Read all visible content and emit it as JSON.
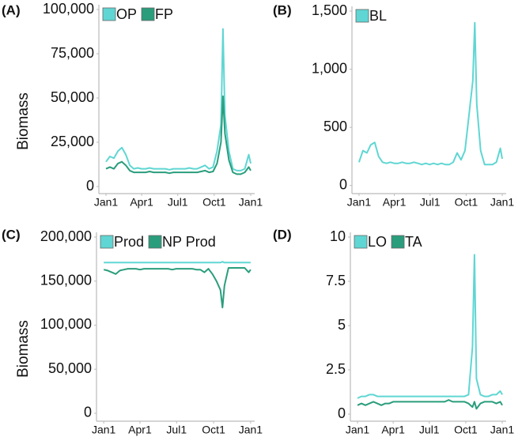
{
  "chart_data": [
    {
      "type": "line",
      "panel_label": "(A)",
      "ylabel": "Biomass",
      "legend": "top-left",
      "x": [
        0,
        10,
        20,
        30,
        40,
        50,
        60,
        70,
        80,
        90,
        100,
        110,
        120,
        130,
        140,
        150,
        160,
        170,
        180,
        190,
        200,
        210,
        220,
        230,
        240,
        250,
        260,
        270,
        280,
        290,
        295,
        300,
        310,
        320,
        330,
        340,
        350,
        360,
        365
      ],
      "xlim": [
        -18,
        375
      ],
      "xticks": [
        {
          "value": 0,
          "label": "Jan1"
        },
        {
          "value": 90,
          "label": "Apr1"
        },
        {
          "value": 181,
          "label": "Jul1"
        },
        {
          "value": 273,
          "label": "Oct1"
        },
        {
          "value": 365,
          "label": "Jan1"
        }
      ],
      "ylim": [
        -4000,
        100000
      ],
      "yticks": [
        0,
        {
          "value": 25000,
          "label": "25,000"
        },
        {
          "value": 50000,
          "label": "50,000"
        },
        {
          "value": 75000,
          "label": "75,000"
        },
        {
          "value": 100000,
          "label": "100,000"
        }
      ],
      "series": [
        {
          "name": "OP",
          "color": "#5fd6d3",
          "values": [
            14000,
            17000,
            16000,
            20000,
            22000,
            18000,
            12000,
            10000,
            10500,
            10000,
            10000,
            10500,
            10000,
            10000,
            10000,
            10000,
            9500,
            10000,
            10000,
            10000,
            10000,
            10500,
            10000,
            10000,
            11000,
            12000,
            10000,
            11000,
            20000,
            35000,
            89000,
            40000,
            20000,
            10000,
            9000,
            9000,
            10000,
            18000,
            13000
          ]
        },
        {
          "name": "FP",
          "color": "#2a9d7c",
          "values": [
            10000,
            11000,
            10000,
            13000,
            14000,
            12000,
            9000,
            8000,
            8000,
            8000,
            8000,
            8500,
            8000,
            8000,
            8000,
            8000,
            7500,
            8000,
            8000,
            8000,
            8000,
            8000,
            8000,
            8000,
            8500,
            9000,
            8000,
            8500,
            13000,
            25000,
            51000,
            30000,
            15000,
            8000,
            7000,
            7000,
            8000,
            11000,
            9000
          ]
        }
      ]
    },
    {
      "type": "line",
      "panel_label": "(B)",
      "legend": "top-left",
      "x": [
        0,
        10,
        20,
        30,
        40,
        50,
        60,
        70,
        80,
        90,
        100,
        110,
        120,
        130,
        140,
        150,
        160,
        170,
        180,
        190,
        200,
        210,
        220,
        230,
        240,
        250,
        260,
        270,
        280,
        290,
        295,
        300,
        310,
        320,
        330,
        340,
        350,
        360,
        365
      ],
      "xlim": [
        -18,
        375
      ],
      "xticks": [
        {
          "value": 0,
          "label": "Jan1"
        },
        {
          "value": 90,
          "label": "Apr1"
        },
        {
          "value": 181,
          "label": "Jul1"
        },
        {
          "value": 273,
          "label": "Oct1"
        },
        {
          "value": 365,
          "label": "Jan1"
        }
      ],
      "ylim": [
        -70,
        1500
      ],
      "yticks": [
        0,
        500,
        {
          "value": 1000,
          "label": "1,000"
        },
        {
          "value": 1500,
          "label": "1,500"
        }
      ],
      "series": [
        {
          "name": "BL",
          "color": "#5fd6d3",
          "values": [
            200,
            300,
            280,
            350,
            370,
            250,
            200,
            190,
            200,
            190,
            190,
            200,
            190,
            190,
            200,
            190,
            180,
            190,
            180,
            190,
            180,
            190,
            180,
            180,
            200,
            280,
            220,
            300,
            600,
            900,
            1400,
            700,
            300,
            180,
            180,
            180,
            200,
            320,
            230
          ]
        }
      ]
    },
    {
      "type": "line",
      "panel_label": "(C)",
      "ylabel": "Biomass",
      "legend": "top-left",
      "x": [
        0,
        10,
        20,
        30,
        40,
        50,
        60,
        70,
        80,
        90,
        100,
        110,
        120,
        130,
        140,
        150,
        160,
        170,
        180,
        190,
        200,
        210,
        220,
        230,
        240,
        250,
        260,
        270,
        280,
        290,
        295,
        300,
        310,
        320,
        330,
        340,
        350,
        360,
        365
      ],
      "xlim": [
        -18,
        375
      ],
      "xticks": [
        {
          "value": 0,
          "label": "Jan1"
        },
        {
          "value": 90,
          "label": "Apr1"
        },
        {
          "value": 181,
          "label": "Jul1"
        },
        {
          "value": 273,
          "label": "Oct1"
        },
        {
          "value": 365,
          "label": "Jan1"
        }
      ],
      "ylim": [
        -9000,
        200000
      ],
      "yticks": [
        0,
        {
          "value": 50000,
          "label": "50,000"
        },
        {
          "value": 100000,
          "label": "100,000"
        },
        {
          "value": 150000,
          "label": "150,000"
        },
        {
          "value": 200000,
          "label": "200,000"
        }
      ],
      "series": [
        {
          "name": "Prod",
          "color": "#5fd6d3",
          "values": [
            171000,
            171000,
            171000,
            171000,
            171000,
            171000,
            171000,
            171000,
            171000,
            171000,
            171000,
            171000,
            171000,
            171000,
            171000,
            171000,
            171000,
            171000,
            171000,
            171000,
            171000,
            171000,
            171000,
            171000,
            171000,
            171000,
            171000,
            171000,
            171000,
            171000,
            172000,
            171000,
            171000,
            171000,
            171000,
            171000,
            171000,
            171000,
            171000
          ]
        },
        {
          "name": "NP Prod",
          "color": "#2a9d7c",
          "values": [
            163000,
            162000,
            160000,
            158000,
            162000,
            163000,
            164000,
            164000,
            164000,
            163000,
            164000,
            164000,
            164000,
            164000,
            164000,
            164000,
            164000,
            163000,
            164000,
            164000,
            164000,
            164000,
            164000,
            163000,
            163000,
            160000,
            164000,
            158000,
            150000,
            140000,
            120000,
            145000,
            165000,
            165000,
            165000,
            165000,
            165000,
            160000,
            163000
          ]
        }
      ]
    },
    {
      "type": "line",
      "panel_label": "(D)",
      "legend": "top-left",
      "x": [
        0,
        10,
        20,
        30,
        40,
        50,
        60,
        70,
        80,
        90,
        100,
        110,
        120,
        130,
        140,
        150,
        160,
        170,
        180,
        190,
        200,
        210,
        220,
        230,
        240,
        250,
        260,
        270,
        280,
        290,
        295,
        300,
        310,
        320,
        330,
        340,
        350,
        360,
        365
      ],
      "xlim": [
        -18,
        375
      ],
      "xticks": [
        {
          "value": 0,
          "label": "Jan1"
        },
        {
          "value": 90,
          "label": "Apr1"
        },
        {
          "value": 181,
          "label": "Jul1"
        },
        {
          "value": 273,
          "label": "Oct1"
        },
        {
          "value": 365,
          "label": "Jan1"
        }
      ],
      "ylim": [
        -0.4,
        10
      ],
      "yticks": [
        0,
        2.5,
        5,
        7.5,
        10
      ],
      "series": [
        {
          "name": "LO",
          "color": "#5fd6d3",
          "values": [
            0.9,
            1.0,
            1.0,
            1.1,
            1.1,
            1.0,
            1.0,
            1.0,
            1.0,
            1.0,
            1.0,
            1.0,
            1.0,
            1.0,
            1.0,
            1.0,
            1.0,
            1.0,
            1.0,
            1.0,
            1.0,
            1.0,
            1.0,
            1.0,
            1.0,
            1.0,
            1.0,
            1.0,
            1.1,
            3.8,
            9.0,
            2.0,
            1.1,
            1.0,
            1.0,
            1.1,
            1.1,
            1.3,
            1.1
          ]
        },
        {
          "name": "TA",
          "color": "#2a9d7c",
          "values": [
            0.5,
            0.6,
            0.5,
            0.6,
            0.7,
            0.6,
            0.5,
            0.6,
            0.6,
            0.7,
            0.7,
            0.7,
            0.7,
            0.7,
            0.7,
            0.7,
            0.7,
            0.7,
            0.7,
            0.7,
            0.7,
            0.7,
            0.7,
            0.8,
            0.7,
            0.7,
            0.7,
            0.7,
            0.6,
            0.4,
            0.7,
            0.3,
            0.6,
            0.7,
            0.7,
            0.7,
            0.6,
            0.7,
            0.5
          ]
        }
      ]
    }
  ]
}
